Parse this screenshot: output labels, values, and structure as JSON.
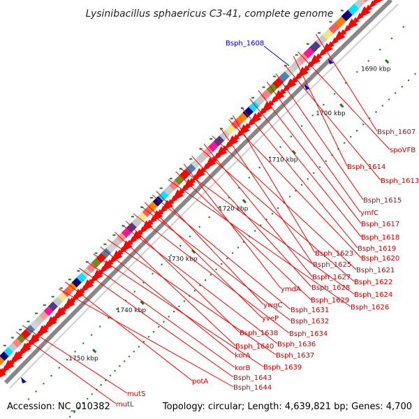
{
  "title": "Lysinibacillus sphaericus C3-41, complete genome",
  "footer": {
    "accession": "Accession: NC_010382",
    "summary": "Topology: circular; Length: 4,639,821 bp; Genes: 4,700"
  },
  "ticks": [
    "1690 kbp",
    "1700 kbp",
    "1710 kbp",
    "1720 kbp",
    "1730 kbp",
    "1740 kbp",
    "1750 kbp"
  ],
  "highlight_label": "Bsph_1608",
  "gene_labels": [
    "Bsph_1607",
    "spoVFB",
    "Bsph_1614",
    "Bsph_1613",
    "Bsph_1615",
    "ymfC",
    "Bsph_1617",
    "Bsph_1618",
    "Bsph_1619",
    "Bsph_1623",
    "Bsph_1620",
    "Bsph_1625",
    "Bsph_1621",
    "Bsph_1627",
    "Bsph_1622",
    "Bsph_1628",
    "ymdA",
    "Bsph_1624",
    "Bsph_1629",
    "Bsph_1626",
    "ywqC",
    "Bsph_1631",
    "yveP",
    "Bsph_1632",
    "Bsph_1634",
    "Bsph_1638",
    "Bsph_1636",
    "Bsph_1640",
    "Bsph_1637",
    "korA",
    "Bsph_1639",
    "korB",
    "Bsph_1643",
    "potA",
    "Bsph_1644",
    "mutS",
    "mutL"
  ],
  "colors": {
    "forward_cds": "#ff0000",
    "backbone": "#888888",
    "gc_skew": "#1a7a1a",
    "highlight": "#0000cc",
    "label_line": "#ff0000"
  }
}
